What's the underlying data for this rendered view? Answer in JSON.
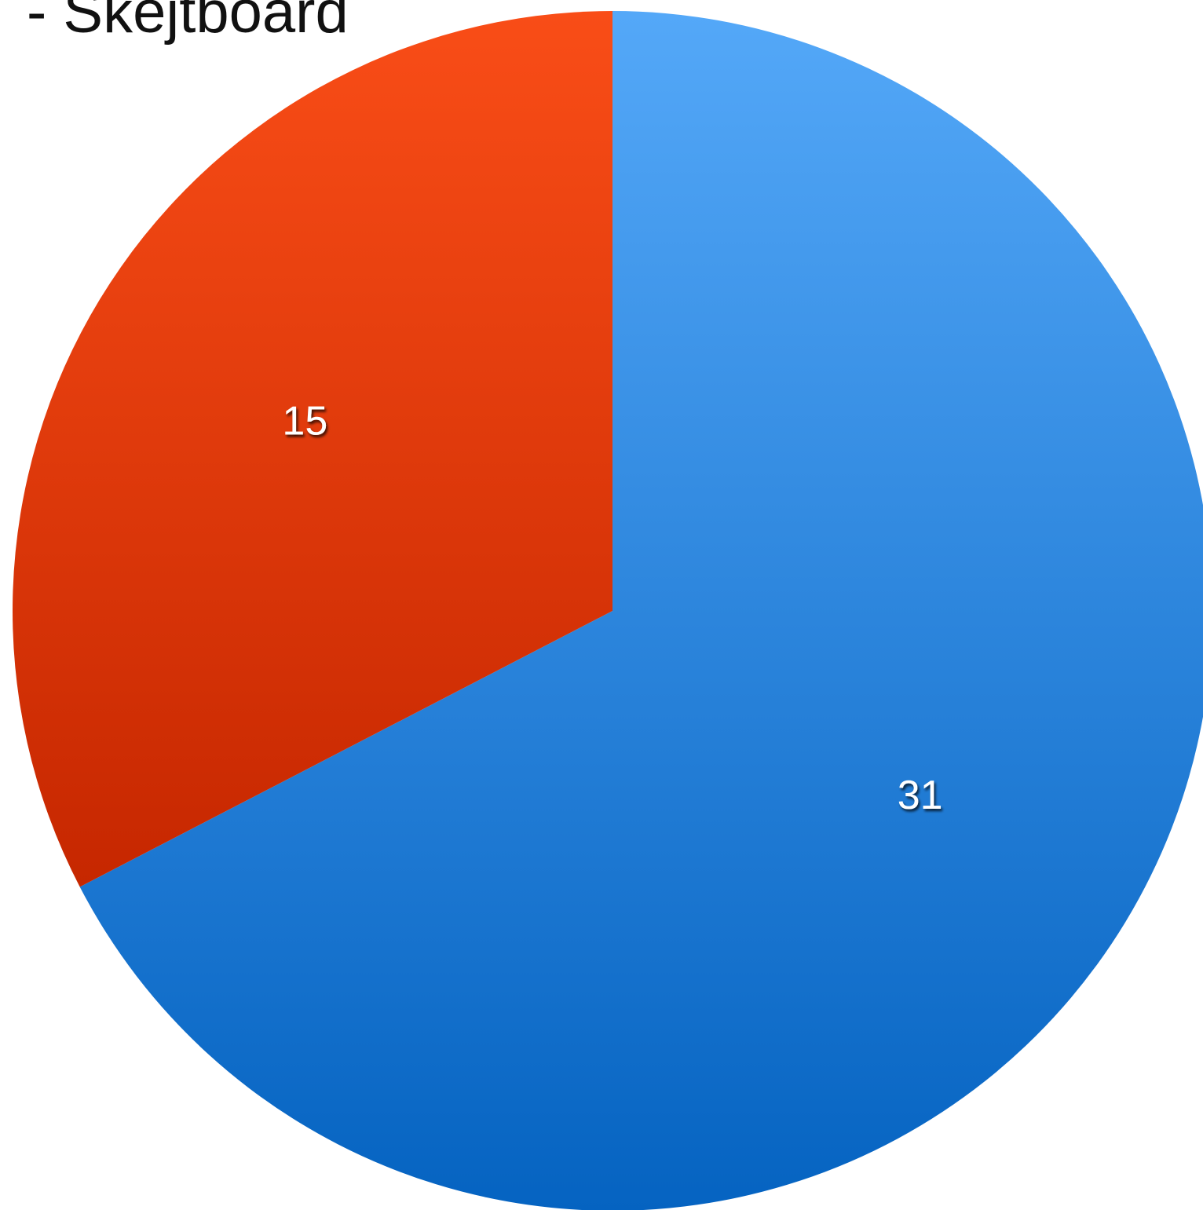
{
  "chart_data": {
    "type": "pie",
    "title": "- Skejtboard",
    "categories": [
      "",
      ""
    ],
    "values": [
      31,
      15
    ],
    "data_labels": [
      "31",
      "15"
    ],
    "colors": {
      "blue_top": "#54A8F8",
      "blue_bottom": "#0563C1",
      "red_top": "#F94D17",
      "red_bottom": "#C62700"
    },
    "legend": "none"
  }
}
